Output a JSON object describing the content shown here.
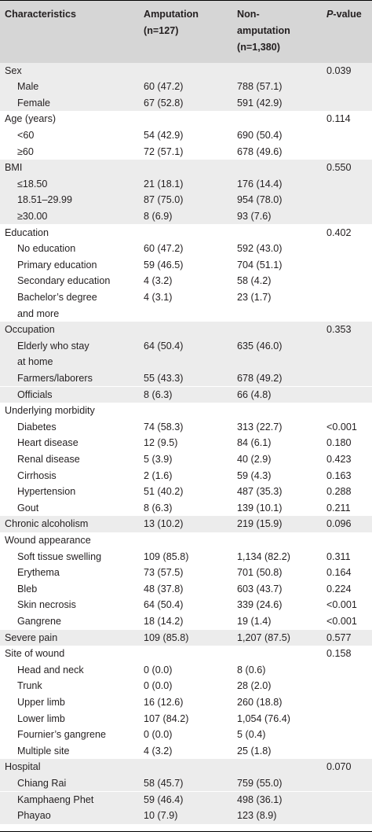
{
  "header": {
    "col0": "Characteristics",
    "col1_line1": "Amputation",
    "col1_line2": "(n=127)",
    "col2_line1": "Non-",
    "col2_line2": "amputation",
    "col2_line3": "(n=1,380)",
    "col3_italic": "P",
    "col3_rest": "-value"
  },
  "rows": [
    {
      "label": "Sex",
      "indent": false,
      "shade": true,
      "amp": "",
      "non": "",
      "p": "0.039"
    },
    {
      "label": "Male",
      "indent": true,
      "shade": true,
      "amp": "60 (47.2)",
      "non": "788 (57.1)",
      "p": ""
    },
    {
      "label": "Female",
      "indent": true,
      "shade": true,
      "amp": "67 (52.8)",
      "non": "591 (42.9)",
      "p": ""
    },
    {
      "label": "Age (years)",
      "indent": false,
      "shade": false,
      "amp": "",
      "non": "",
      "p": "0.114"
    },
    {
      "label": "<60",
      "indent": true,
      "shade": false,
      "amp": "54 (42.9)",
      "non": "690 (50.4)",
      "p": ""
    },
    {
      "label": "≥60",
      "indent": true,
      "shade": false,
      "amp": "72 (57.1)",
      "non": "678 (49.6)",
      "p": ""
    },
    {
      "label": "BMI",
      "indent": false,
      "shade": true,
      "amp": "",
      "non": "",
      "p": "0.550"
    },
    {
      "label": "≤18.50",
      "indent": true,
      "shade": true,
      "amp": "21 (18.1)",
      "non": "176 (14.4)",
      "p": ""
    },
    {
      "label": "18.51–29.99",
      "indent": true,
      "shade": true,
      "amp": "87 (75.0)",
      "non": "954 (78.0)",
      "p": ""
    },
    {
      "label": "≥30.00",
      "indent": true,
      "shade": true,
      "amp": "8 (6.9)",
      "non": "93 (7.6)",
      "p": ""
    },
    {
      "label": "Education",
      "indent": false,
      "shade": false,
      "amp": "",
      "non": "",
      "p": "0.402"
    },
    {
      "label": "No education",
      "indent": true,
      "shade": false,
      "amp": "60 (47.2)",
      "non": "592 (43.0)",
      "p": ""
    },
    {
      "label": "Primary education",
      "indent": true,
      "shade": false,
      "amp": "59 (46.5)",
      "non": "704 (51.1)",
      "p": ""
    },
    {
      "label": "Secondary education",
      "indent": true,
      "shade": false,
      "amp": "4 (3.2)",
      "non": "58 (4.2)",
      "p": ""
    },
    {
      "label": "Bachelor’s degree",
      "indent": true,
      "shade": false,
      "amp": "4 (3.1)",
      "non": "23 (1.7)",
      "p": ""
    },
    {
      "label": "and more",
      "indent": true,
      "shade": false,
      "amp": "",
      "non": "",
      "p": ""
    },
    {
      "label": "Occupation",
      "indent": false,
      "shade": true,
      "amp": "",
      "non": "",
      "p": "0.353"
    },
    {
      "label": "Elderly who stay",
      "indent": true,
      "shade": true,
      "amp": "64 (50.4)",
      "non": "635 (46.0)",
      "p": ""
    },
    {
      "label": "at home",
      "indent": true,
      "shade": true,
      "amp": "",
      "non": "",
      "p": ""
    },
    {
      "label": "Farmers/laborers",
      "indent": true,
      "shade": true,
      "amp": "55 (43.3)",
      "non": "678 (49.2)",
      "p": ""
    },
    {
      "label": "Officials",
      "indent": true,
      "shade": true,
      "amp": "8 (6.3)",
      "non": "66 (4.8)",
      "p": ""
    },
    {
      "label": "Underlying morbidity",
      "indent": false,
      "shade": false,
      "amp": "",
      "non": "",
      "p": ""
    },
    {
      "label": "Diabetes",
      "indent": true,
      "shade": false,
      "amp": "74 (58.3)",
      "non": "313 (22.7)",
      "p": "<0.001"
    },
    {
      "label": "Heart disease",
      "indent": true,
      "shade": false,
      "amp": "12 (9.5)",
      "non": "84 (6.1)",
      "p": "0.180"
    },
    {
      "label": "Renal disease",
      "indent": true,
      "shade": false,
      "amp": "5 (3.9)",
      "non": "40 (2.9)",
      "p": "0.423"
    },
    {
      "label": "Cirrhosis",
      "indent": true,
      "shade": false,
      "amp": "2 (1.6)",
      "non": "59 (4.3)",
      "p": "0.163"
    },
    {
      "label": "Hypertension",
      "indent": true,
      "shade": false,
      "amp": "51 (40.2)",
      "non": "487 (35.3)",
      "p": "0.288"
    },
    {
      "label": "Gout",
      "indent": true,
      "shade": false,
      "amp": "8 (6.3)",
      "non": "139 (10.1)",
      "p": "0.211"
    },
    {
      "label": "Chronic alcoholism",
      "indent": false,
      "shade": true,
      "amp": "13 (10.2)",
      "non": "219 (15.9)",
      "p": "0.096"
    },
    {
      "label": "Wound appearance",
      "indent": false,
      "shade": false,
      "amp": "",
      "non": "",
      "p": ""
    },
    {
      "label": "Soft tissue swelling",
      "indent": true,
      "shade": false,
      "amp": "109 (85.8)",
      "non": "1,134 (82.2)",
      "p": "0.311"
    },
    {
      "label": "Erythema",
      "indent": true,
      "shade": false,
      "amp": "73 (57.5)",
      "non": "701 (50.8)",
      "p": "0.164"
    },
    {
      "label": "Bleb",
      "indent": true,
      "shade": false,
      "amp": "48 (37.8)",
      "non": "603 (43.7)",
      "p": "0.224"
    },
    {
      "label": "Skin necrosis",
      "indent": true,
      "shade": false,
      "amp": "64 (50.4)",
      "non": "339 (24.6)",
      "p": "<0.001"
    },
    {
      "label": "Gangrene",
      "indent": true,
      "shade": false,
      "amp": "18 (14.2)",
      "non": "19 (1.4)",
      "p": "<0.001"
    },
    {
      "label": "Severe pain",
      "indent": false,
      "shade": true,
      "amp": "109 (85.8)",
      "non": "1,207 (87.5)",
      "p": "0.577"
    },
    {
      "label": "Site of wound",
      "indent": false,
      "shade": false,
      "amp": "",
      "non": "",
      "p": "0.158"
    },
    {
      "label": "Head and neck",
      "indent": true,
      "shade": false,
      "amp": "0 (0.0)",
      "non": "8 (0.6)",
      "p": ""
    },
    {
      "label": "Trunk",
      "indent": true,
      "shade": false,
      "amp": "0 (0.0)",
      "non": "28 (2.0)",
      "p": ""
    },
    {
      "label": "Upper limb",
      "indent": true,
      "shade": false,
      "amp": "16 (12.6)",
      "non": "260 (18.8)",
      "p": ""
    },
    {
      "label": "Lower limb",
      "indent": true,
      "shade": false,
      "amp": "107 (84.2)",
      "non": "1,054 (76.4)",
      "p": ""
    },
    {
      "label": "Fournier’s gangrene",
      "indent": true,
      "shade": false,
      "amp": "0 (0.0)",
      "non": "5 (0.4)",
      "p": ""
    },
    {
      "label": "Multiple site",
      "indent": true,
      "shade": false,
      "amp": "4 (3.2)",
      "non": "25 (1.8)",
      "p": ""
    },
    {
      "label": "Hospital",
      "indent": false,
      "shade": true,
      "amp": "",
      "non": "",
      "p": "0.070"
    },
    {
      "label": "Chiang Rai",
      "indent": true,
      "shade": true,
      "amp": "58 (45.7)",
      "non": "759 (55.0)",
      "p": ""
    },
    {
      "label": "Kamphaeng Phet",
      "indent": true,
      "shade": true,
      "amp": "59 (46.4)",
      "non": "498 (36.1)",
      "p": ""
    },
    {
      "label": "Phayao",
      "indent": true,
      "shade": true,
      "amp": "10 (7.9)",
      "non": "123 (8.9)",
      "p": ""
    }
  ]
}
